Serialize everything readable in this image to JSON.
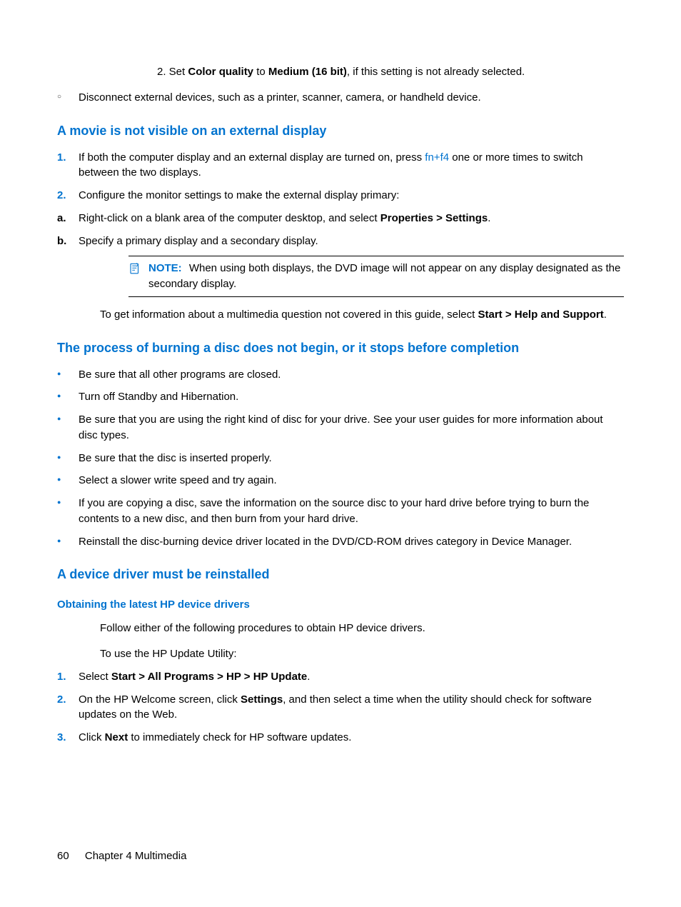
{
  "colors": {
    "accent": "#0073cf",
    "text": "#000000",
    "background": "#ffffff"
  },
  "top": {
    "step2": {
      "prefix": "2. Set ",
      "bold1": "Color quality",
      "mid": " to ",
      "bold2": "Medium (16 bit)",
      "suffix": ", if this setting is not already selected."
    },
    "circ1": "Disconnect external devices, such as a printer, scanner, camera, or handheld device."
  },
  "section1": {
    "heading": "A movie is not visible on an external display",
    "item1": {
      "num": "1.",
      "pre": "If both the computer display and an external display are turned on, press ",
      "link": "fn+f4",
      "post": " one or more times to switch between the two displays."
    },
    "item2": {
      "num": "2.",
      "text": "Configure the monitor settings to make the external display primary:"
    },
    "sub_a": {
      "marker": "a.",
      "pre": "Right-click on a blank area of the computer desktop, and select ",
      "bold": "Properties > Settings",
      "post": "."
    },
    "sub_b": {
      "marker": "b.",
      "text": "Specify a primary display and a secondary display."
    },
    "note": {
      "label": "NOTE:",
      "text": "When using both displays, the DVD image will not appear on any display designated as the secondary display."
    },
    "tail": {
      "pre": "To get information about a multimedia question not covered in this guide, select ",
      "bold": "Start > Help and Support",
      "post": "."
    }
  },
  "section2": {
    "heading": "The process of burning a disc does not begin, or it stops before completion",
    "bullets": [
      "Be sure that all other programs are closed.",
      "Turn off Standby and Hibernation.",
      "Be sure that you are using the right kind of disc for your drive. See your user guides for more information about disc types.",
      "Be sure that the disc is inserted properly.",
      "Select a slower write speed and try again.",
      "If you are copying a disc, save the information on the source disc to your hard drive before trying to burn the contents to a new disc, and then burn from your hard drive.",
      "Reinstall the disc-burning device driver located in the DVD/CD-ROM drives category in Device Manager."
    ]
  },
  "section3": {
    "heading": "A device driver must be reinstalled",
    "subheading": "Obtaining the latest HP device drivers",
    "p1": "Follow either of the following procedures to obtain HP device drivers.",
    "p2": "To use the HP Update Utility:",
    "step1": {
      "num": "1.",
      "pre": "Select ",
      "bold": "Start > All Programs > HP > HP Update",
      "post": "."
    },
    "step2": {
      "num": "2.",
      "pre": "On the HP Welcome screen, click ",
      "bold": "Settings",
      "post": ", and then select a time when the utility should check for software updates on the Web."
    },
    "step3": {
      "num": "3.",
      "pre": "Click ",
      "bold": "Next",
      "post": " to immediately check for HP software updates."
    }
  },
  "footer": {
    "page": "60",
    "chapter": "Chapter 4   Multimedia"
  }
}
